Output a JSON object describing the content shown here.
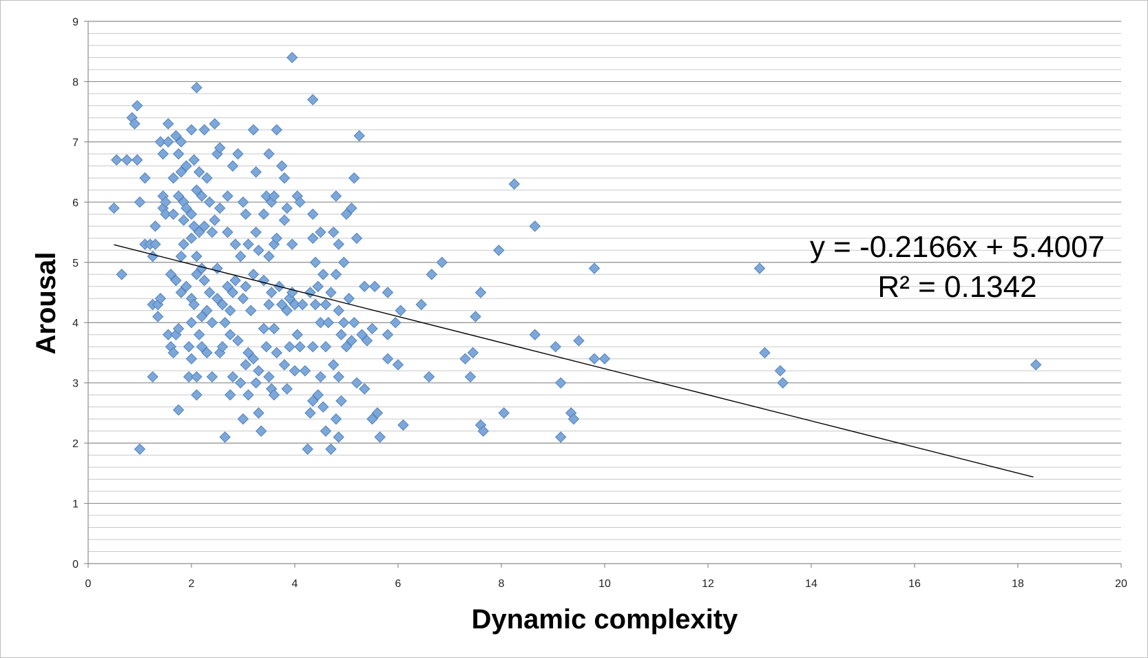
{
  "chart_data": {
    "type": "scatter",
    "title": "",
    "xlabel": "Dynamic complexity",
    "ylabel": "Arousal",
    "xlim": [
      0,
      20
    ],
    "ylim": [
      0,
      9
    ],
    "x_ticks": [
      "0",
      "2",
      "4",
      "6",
      "8",
      "10",
      "12",
      "14",
      "16",
      "18",
      "20"
    ],
    "y_ticks": [
      "0",
      "1",
      "2",
      "3",
      "4",
      "5",
      "6",
      "7",
      "8",
      "9"
    ],
    "y_minor_step": 0.2,
    "grid": true,
    "legend": "none",
    "marker_color": "#7da7d9",
    "marker_edge_color": "#4f81bd",
    "trendline_color": "#000000",
    "trendline": {
      "slope": -0.2166,
      "intercept": 5.4007,
      "x_range": [
        0.5,
        18.3
      ],
      "equation_label": "y = -0.2166x + 5.4007",
      "r2_label": "R² = 0.1342"
    },
    "series": [
      {
        "points": [
          [
            0.5,
            5.9
          ],
          [
            0.55,
            6.7
          ],
          [
            0.65,
            4.8
          ],
          [
            0.75,
            6.7
          ],
          [
            0.85,
            7.4
          ],
          [
            0.9,
            7.3
          ],
          [
            0.95,
            7.6
          ],
          [
            0.95,
            6.7
          ],
          [
            1.0,
            6.0
          ],
          [
            1.0,
            1.9
          ],
          [
            1.1,
            6.4
          ],
          [
            1.1,
            5.3
          ],
          [
            1.2,
            5.3
          ],
          [
            1.25,
            5.1
          ],
          [
            1.25,
            4.3
          ],
          [
            1.25,
            3.1
          ],
          [
            1.3,
            5.6
          ],
          [
            1.3,
            5.3
          ],
          [
            1.35,
            4.1
          ],
          [
            1.35,
            4.3
          ],
          [
            1.4,
            7.0
          ],
          [
            1.4,
            4.4
          ],
          [
            1.45,
            6.1
          ],
          [
            1.45,
            5.9
          ],
          [
            1.45,
            6.8
          ],
          [
            1.5,
            5.8
          ],
          [
            1.5,
            6.0
          ],
          [
            1.55,
            7.3
          ],
          [
            1.55,
            7.0
          ],
          [
            1.55,
            3.8
          ],
          [
            1.6,
            3.6
          ],
          [
            1.6,
            4.8
          ],
          [
            1.65,
            6.4
          ],
          [
            1.65,
            5.8
          ],
          [
            1.65,
            3.5
          ],
          [
            1.7,
            4.7
          ],
          [
            1.7,
            3.8
          ],
          [
            1.7,
            7.1
          ],
          [
            1.75,
            6.8
          ],
          [
            1.75,
            6.1
          ],
          [
            1.75,
            3.9
          ],
          [
            1.75,
            2.55
          ],
          [
            1.8,
            7.0
          ],
          [
            1.8,
            6.5
          ],
          [
            1.8,
            5.1
          ],
          [
            1.8,
            4.5
          ],
          [
            1.85,
            6.0
          ],
          [
            1.85,
            5.7
          ],
          [
            1.85,
            5.3
          ],
          [
            1.9,
            6.6
          ],
          [
            1.9,
            5.9
          ],
          [
            1.9,
            4.6
          ],
          [
            1.95,
            3.6
          ],
          [
            1.95,
            3.1
          ],
          [
            2.0,
            7.2
          ],
          [
            2.0,
            5.8
          ],
          [
            2.0,
            5.4
          ],
          [
            2.0,
            4.4
          ],
          [
            2.0,
            4.0
          ],
          [
            2.0,
            3.4
          ],
          [
            2.05,
            6.7
          ],
          [
            2.05,
            5.6
          ],
          [
            2.05,
            4.3
          ],
          [
            2.1,
            7.9
          ],
          [
            2.1,
            6.2
          ],
          [
            2.1,
            5.1
          ],
          [
            2.1,
            4.8
          ],
          [
            2.1,
            3.1
          ],
          [
            2.1,
            2.8
          ],
          [
            2.15,
            6.5
          ],
          [
            2.15,
            5.5
          ],
          [
            2.15,
            3.8
          ],
          [
            2.2,
            6.1
          ],
          [
            2.2,
            4.9
          ],
          [
            2.2,
            4.1
          ],
          [
            2.2,
            3.6
          ],
          [
            2.25,
            7.2
          ],
          [
            2.25,
            5.6
          ],
          [
            2.25,
            4.7
          ],
          [
            2.3,
            6.4
          ],
          [
            2.3,
            4.2
          ],
          [
            2.3,
            3.5
          ],
          [
            2.35,
            6.0
          ],
          [
            2.35,
            4.5
          ],
          [
            2.4,
            5.5
          ],
          [
            2.4,
            4.0
          ],
          [
            2.4,
            3.1
          ],
          [
            2.45,
            7.3
          ],
          [
            2.45,
            5.7
          ],
          [
            2.5,
            6.8
          ],
          [
            2.5,
            4.9
          ],
          [
            2.5,
            4.4
          ],
          [
            2.55,
            6.9
          ],
          [
            2.55,
            5.9
          ],
          [
            2.55,
            3.5
          ],
          [
            2.6,
            4.3
          ],
          [
            2.6,
            3.6
          ],
          [
            2.65,
            4.0
          ],
          [
            2.65,
            2.1
          ],
          [
            2.7,
            6.1
          ],
          [
            2.7,
            5.5
          ],
          [
            2.7,
            4.6
          ],
          [
            2.75,
            4.2
          ],
          [
            2.75,
            3.8
          ],
          [
            2.75,
            2.8
          ],
          [
            2.8,
            6.6
          ],
          [
            2.8,
            4.5
          ],
          [
            2.8,
            3.1
          ],
          [
            2.85,
            5.3
          ],
          [
            2.85,
            4.7
          ],
          [
            2.9,
            6.8
          ],
          [
            2.9,
            3.7
          ],
          [
            2.95,
            5.1
          ],
          [
            2.95,
            3.0
          ],
          [
            3.0,
            6.0
          ],
          [
            3.0,
            4.4
          ],
          [
            3.0,
            2.4
          ],
          [
            3.05,
            5.8
          ],
          [
            3.05,
            4.6
          ],
          [
            3.05,
            3.3
          ],
          [
            3.1,
            5.3
          ],
          [
            3.1,
            3.5
          ],
          [
            3.1,
            2.8
          ],
          [
            3.15,
            4.2
          ],
          [
            3.2,
            7.2
          ],
          [
            3.2,
            4.8
          ],
          [
            3.2,
            3.4
          ],
          [
            3.25,
            6.5
          ],
          [
            3.25,
            5.5
          ],
          [
            3.25,
            3.0
          ],
          [
            3.3,
            5.2
          ],
          [
            3.3,
            3.2
          ],
          [
            3.3,
            2.5
          ],
          [
            3.35,
            2.2
          ],
          [
            3.4,
            5.8
          ],
          [
            3.4,
            4.7
          ],
          [
            3.4,
            3.9
          ],
          [
            3.45,
            6.1
          ],
          [
            3.45,
            3.6
          ],
          [
            3.5,
            6.8
          ],
          [
            3.5,
            5.1
          ],
          [
            3.5,
            4.3
          ],
          [
            3.5,
            3.1
          ],
          [
            3.55,
            6.0
          ],
          [
            3.55,
            4.5
          ],
          [
            3.55,
            2.9
          ],
          [
            3.6,
            6.1
          ],
          [
            3.6,
            5.3
          ],
          [
            3.6,
            3.9
          ],
          [
            3.6,
            2.8
          ],
          [
            3.65,
            7.2
          ],
          [
            3.65,
            5.4
          ],
          [
            3.65,
            3.5
          ],
          [
            3.7,
            4.6
          ],
          [
            3.75,
            6.6
          ],
          [
            3.75,
            4.3
          ],
          [
            3.8,
            6.4
          ],
          [
            3.8,
            5.7
          ],
          [
            3.8,
            3.3
          ],
          [
            3.85,
            5.9
          ],
          [
            3.85,
            4.2
          ],
          [
            3.85,
            2.9
          ],
          [
            3.9,
            4.4
          ],
          [
            3.9,
            3.6
          ],
          [
            3.95,
            8.4
          ],
          [
            3.95,
            5.3
          ],
          [
            3.95,
            4.5
          ],
          [
            4.0,
            4.3
          ],
          [
            4.0,
            3.2
          ],
          [
            4.05,
            6.1
          ],
          [
            4.05,
            3.8
          ],
          [
            4.1,
            6.0
          ],
          [
            4.1,
            3.6
          ],
          [
            4.15,
            4.3
          ],
          [
            4.2,
            3.2
          ],
          [
            4.25,
            1.9
          ],
          [
            4.3,
            4.5
          ],
          [
            4.3,
            2.5
          ],
          [
            4.35,
            7.7
          ],
          [
            4.35,
            5.8
          ],
          [
            4.35,
            5.4
          ],
          [
            4.35,
            3.6
          ],
          [
            4.35,
            2.7
          ],
          [
            4.4,
            5.0
          ],
          [
            4.4,
            4.3
          ],
          [
            4.45,
            4.6
          ],
          [
            4.45,
            2.8
          ],
          [
            4.5,
            5.5
          ],
          [
            4.5,
            4.0
          ],
          [
            4.5,
            3.1
          ],
          [
            4.55,
            4.8
          ],
          [
            4.55,
            2.6
          ],
          [
            4.6,
            4.3
          ],
          [
            4.6,
            3.6
          ],
          [
            4.6,
            2.2
          ],
          [
            4.65,
            4.0
          ],
          [
            4.7,
            4.5
          ],
          [
            4.7,
            1.9
          ],
          [
            4.75,
            5.5
          ],
          [
            4.75,
            3.3
          ],
          [
            4.8,
            6.1
          ],
          [
            4.8,
            4.8
          ],
          [
            4.8,
            2.4
          ],
          [
            4.85,
            5.3
          ],
          [
            4.85,
            4.2
          ],
          [
            4.85,
            3.1
          ],
          [
            4.85,
            2.1
          ],
          [
            4.9,
            3.8
          ],
          [
            4.9,
            2.7
          ],
          [
            4.95,
            5.0
          ],
          [
            4.95,
            4.0
          ],
          [
            5.0,
            5.8
          ],
          [
            5.0,
            3.6
          ],
          [
            5.05,
            4.4
          ],
          [
            5.1,
            5.9
          ],
          [
            5.1,
            3.7
          ],
          [
            5.15,
            6.4
          ],
          [
            5.15,
            4.0
          ],
          [
            5.2,
            5.4
          ],
          [
            5.2,
            3.0
          ],
          [
            5.25,
            7.1
          ],
          [
            5.3,
            3.8
          ],
          [
            5.35,
            4.6
          ],
          [
            5.35,
            2.9
          ],
          [
            5.4,
            3.7
          ],
          [
            5.5,
            3.9
          ],
          [
            5.5,
            2.4
          ],
          [
            5.55,
            4.6
          ],
          [
            5.6,
            2.5
          ],
          [
            5.65,
            2.1
          ],
          [
            5.8,
            4.5
          ],
          [
            5.8,
            3.4
          ],
          [
            5.8,
            3.8
          ],
          [
            5.95,
            4.0
          ],
          [
            6.0,
            3.3
          ],
          [
            6.05,
            4.2
          ],
          [
            6.1,
            2.3
          ],
          [
            6.45,
            4.3
          ],
          [
            6.6,
            3.1
          ],
          [
            6.65,
            4.8
          ],
          [
            6.85,
            5.0
          ],
          [
            7.3,
            3.4
          ],
          [
            7.4,
            3.1
          ],
          [
            7.45,
            3.5
          ],
          [
            7.5,
            4.1
          ],
          [
            7.6,
            4.5
          ],
          [
            7.6,
            2.3
          ],
          [
            7.65,
            2.2
          ],
          [
            7.95,
            5.2
          ],
          [
            8.05,
            2.5
          ],
          [
            8.25,
            6.3
          ],
          [
            8.65,
            5.6
          ],
          [
            8.65,
            3.8
          ],
          [
            9.05,
            3.6
          ],
          [
            9.15,
            3.0
          ],
          [
            9.15,
            2.1
          ],
          [
            9.35,
            2.5
          ],
          [
            9.4,
            2.4
          ],
          [
            9.5,
            3.7
          ],
          [
            9.8,
            4.9
          ],
          [
            9.8,
            3.4
          ],
          [
            10.0,
            3.4
          ],
          [
            13.0,
            4.9
          ],
          [
            13.1,
            3.5
          ],
          [
            13.4,
            3.2
          ],
          [
            13.45,
            3.0
          ],
          [
            18.35,
            3.3
          ]
        ]
      }
    ]
  }
}
